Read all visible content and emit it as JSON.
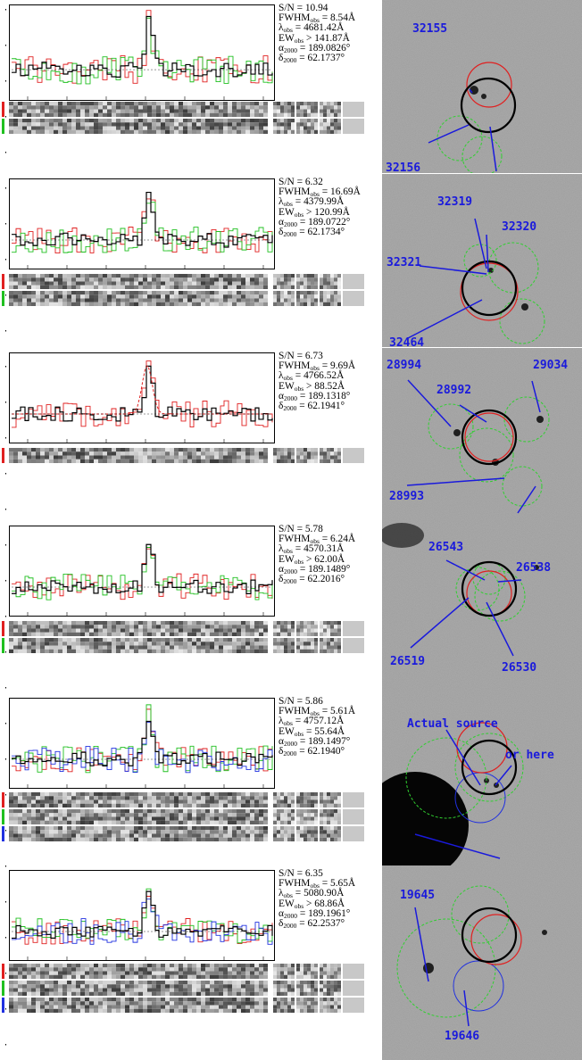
{
  "panels": [
    {
      "id": "p1",
      "sn": "10.94",
      "fwhm": "8.54Å",
      "lambda": "4681.42Å",
      "ew_rel": ">",
      "ew": "141.87Å",
      "alpha": "189.0826°",
      "delta": "62.1737°",
      "stamp_rows": 2,
      "marker_colors": [
        "#e02020",
        "#20c020"
      ],
      "series_colors": [
        "#e02020",
        "#20c020",
        "#000000"
      ],
      "labels": [
        {
          "text": "32155"
        },
        {
          "text": "32156"
        }
      ]
    },
    {
      "id": "p2",
      "sn": "6.32",
      "fwhm": "16.69Å",
      "lambda": "4379.99Å",
      "ew_rel": ">",
      "ew": "120.99Å",
      "alpha": "189.0722°",
      "delta": "62.1734°",
      "stamp_rows": 2,
      "marker_colors": [
        "#e02020",
        "#20c020"
      ],
      "series_colors": [
        "#e02020",
        "#20c020",
        "#000000"
      ],
      "labels": [
        {
          "text": "32319"
        },
        {
          "text": "32320"
        },
        {
          "text": "32321"
        },
        {
          "text": "32464"
        }
      ]
    },
    {
      "id": "p3",
      "sn": "6.73",
      "fwhm": "9.69Å",
      "lambda": "4766.52Å",
      "ew_rel": ">",
      "ew": "88.52Å",
      "alpha": "189.1318°",
      "delta": "62.1941°",
      "stamp_rows": 1,
      "marker_colors": [
        "#e02020"
      ],
      "series_colors": [
        "#e02020",
        "#000000"
      ],
      "labels": [
        {
          "text": "28994"
        },
        {
          "text": "29034"
        },
        {
          "text": "28992"
        },
        {
          "text": "28993"
        }
      ]
    },
    {
      "id": "p4",
      "sn": "5.78",
      "fwhm": "6.24Å",
      "lambda": "4570.31Å",
      "ew_rel": ">",
      "ew": "62.00Å",
      "alpha": "189.1489°",
      "delta": "62.2016°",
      "stamp_rows": 2,
      "marker_colors": [
        "#e02020",
        "#20c020"
      ],
      "series_colors": [
        "#e02020",
        "#20c020",
        "#000000"
      ],
      "labels": [
        {
          "text": "26543"
        },
        {
          "text": "26538"
        },
        {
          "text": "26519"
        },
        {
          "text": "26530"
        }
      ]
    },
    {
      "id": "p5",
      "sn": "5.86",
      "fwhm": "5.61Å",
      "lambda": "4757.12Å",
      "ew_rel": "=",
      "ew": "55.64Å",
      "alpha": "189.1497°",
      "delta": "62.1940°",
      "stamp_rows": 3,
      "marker_colors": [
        "#e02020",
        "#20c020",
        "#2030e0"
      ],
      "series_colors": [
        "#e02020",
        "#20c020",
        "#2030e0",
        "#000000"
      ],
      "labels": [
        {
          "text": "Actual source"
        },
        {
          "text": "or here"
        }
      ]
    },
    {
      "id": "p6",
      "sn": "6.35",
      "fwhm": "5.65Å",
      "lambda": "5080.90Å",
      "ew_rel": ">",
      "ew": "68.86Å",
      "alpha": "189.1961°",
      "delta": "62.2537°",
      "stamp_rows": 3,
      "marker_colors": [
        "#e02020",
        "#20c020",
        "#2030e0"
      ],
      "series_colors": [
        "#e02020",
        "#20c020",
        "#2030e0",
        "#000000"
      ],
      "labels": [
        {
          "text": "19645"
        },
        {
          "text": "19646"
        }
      ]
    }
  ]
}
